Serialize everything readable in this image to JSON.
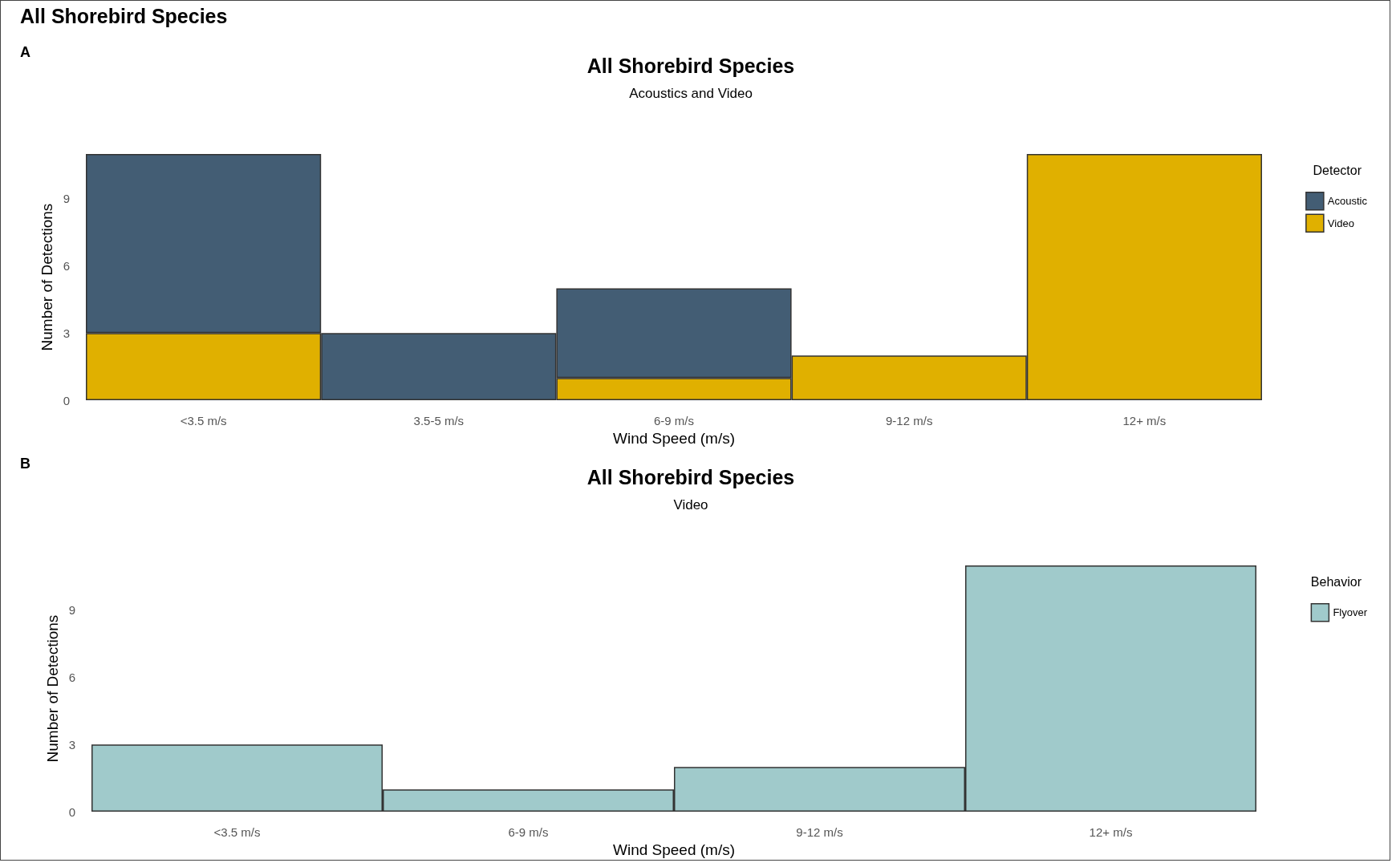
{
  "chart_data": [
    {
      "type": "bar",
      "title": "All Shorebird Species",
      "subtitle": "Acoustics and Video",
      "xlabel": "Wind Speed (m/s)",
      "ylabel": "Number of Detections",
      "legend_title": "Detector",
      "annotations": [
        "All Shorebird Species",
        "A"
      ],
      "categories": [
        "<3.5 m/s",
        "3.5-5 m/s",
        "6-9 m/s",
        "9-12 m/s",
        "12+ m/s"
      ],
      "stacked": true,
      "series": [
        {
          "name": "Video",
          "color": "#e0b000",
          "values": [
            3,
            null,
            1,
            2,
            11
          ]
        },
        {
          "name": "Acoustic",
          "color": "#435d74",
          "values": [
            8,
            3,
            4,
            null,
            null
          ]
        }
      ],
      "ylim": [
        0,
        11
      ],
      "yticks": [
        0,
        3,
        6,
        9
      ],
      "grid": false,
      "legend": "right"
    },
    {
      "type": "bar",
      "title": "All Shorebird Species",
      "subtitle": "Video",
      "xlabel": "Wind Speed (m/s)",
      "ylabel": "Number of Detections",
      "legend_title": "Behavior",
      "annotations": [
        "B"
      ],
      "categories": [
        "<3.5 m/s",
        "6-9 m/s",
        "9-12 m/s",
        "12+ m/s"
      ],
      "series": [
        {
          "name": "Flyover",
          "color": "#a0cacb",
          "values": [
            3,
            1,
            2,
            11
          ]
        }
      ],
      "ylim": [
        0,
        11
      ],
      "yticks": [
        0,
        3,
        6,
        9
      ],
      "grid": false,
      "legend": "right"
    }
  ]
}
